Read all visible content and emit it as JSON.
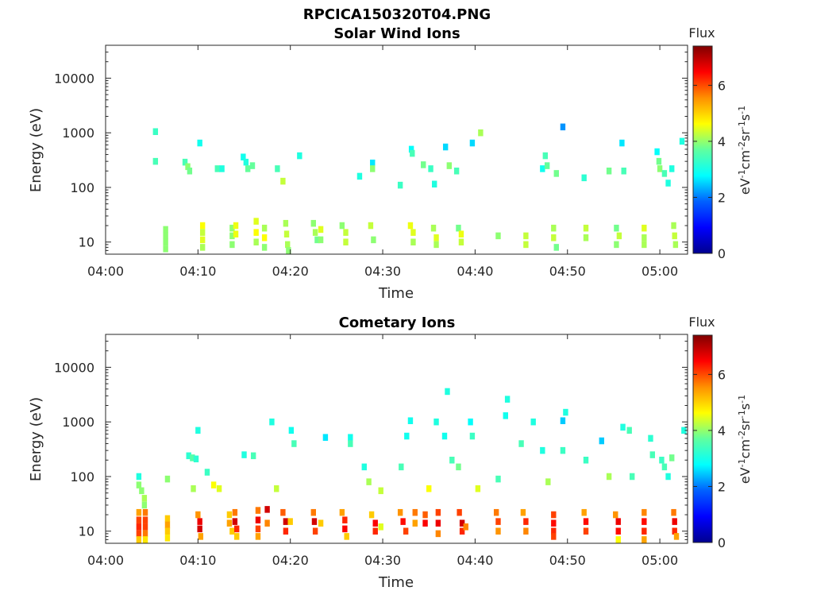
{
  "figure": {
    "title": "RPCICA150320T04.PNG"
  },
  "colors": {
    "axis": "#262626",
    "colormap": [
      "#00008f",
      "#0000ff",
      "#0080ff",
      "#00ffff",
      "#80ff80",
      "#ffff00",
      "#ff8000",
      "#ff0000",
      "#800000"
    ]
  },
  "chart_data": [
    {
      "type": "heatmap",
      "title": "Solar Wind Ions",
      "xlabel": "Time",
      "ylabel": "Energy (eV)",
      "y_scale": "log",
      "xlim": [
        "04:00",
        "05:03"
      ],
      "ylim": [
        6,
        40000
      ],
      "x_ticks": [
        "04:00",
        "04:10",
        "04:20",
        "04:30",
        "04:40",
        "04:50",
        "05:00"
      ],
      "y_ticks": [
        10,
        100,
        1000,
        10000
      ],
      "y_tick_labels": [
        "10",
        "100",
        "1000",
        "10000"
      ],
      "colorbar": {
        "label": "Flux",
        "units_base": "eV",
        "units": "eV-1cm-2sr-1s-1",
        "range": [
          0,
          7.4
        ],
        "ticks": [
          0,
          2,
          4,
          6
        ]
      },
      "cells": [
        [
          "04:05.4",
          1050,
          3.2
        ],
        [
          "04:05.4",
          300,
          3.3
        ],
        [
          "04:06.5",
          17,
          3.8
        ],
        [
          "04:06.5",
          13,
          3.8
        ],
        [
          "04:06.5",
          10,
          3.8
        ],
        [
          "04:06.5",
          7.5,
          3.8
        ],
        [
          "04:08.6",
          290,
          3.3
        ],
        [
          "04:08.9",
          240,
          3.8
        ],
        [
          "04:09.1",
          200,
          3.6
        ],
        [
          "04:10.2",
          650,
          2.9
        ],
        [
          "04:10.5",
          20,
          4.6
        ],
        [
          "04:10.5",
          15,
          4.2
        ],
        [
          "04:10.5",
          11,
          4.4
        ],
        [
          "04:10.5",
          8,
          4.0
        ],
        [
          "04:12.1",
          220,
          3.3
        ],
        [
          "04:12.6",
          220,
          3.0
        ],
        [
          "04:13.7",
          18,
          3.8
        ],
        [
          "04:13.7",
          13,
          3.8
        ],
        [
          "04:13.7",
          9,
          3.8
        ],
        [
          "04:14.1",
          20,
          4.5
        ],
        [
          "04:14.1",
          14,
          4.5
        ],
        [
          "04:14.9",
          360,
          2.9
        ],
        [
          "04:15.2",
          290,
          3.0
        ],
        [
          "04:15.4",
          220,
          3.5
        ],
        [
          "04:15.9",
          250,
          3.5
        ],
        [
          "04:16.3",
          24,
          4.4
        ],
        [
          "04:16.3",
          15,
          4.6
        ],
        [
          "04:16.3",
          10,
          4.0
        ],
        [
          "04:17.2",
          18,
          4.0
        ],
        [
          "04:17.2",
          12,
          4.6
        ],
        [
          "04:17.2",
          8,
          3.8
        ],
        [
          "04:18.6",
          220,
          3.3
        ],
        [
          "04:19.2",
          130,
          4.2
        ],
        [
          "04:19.5",
          22,
          4.0
        ],
        [
          "04:19.6",
          14,
          4.2
        ],
        [
          "04:19.7",
          9,
          4.0
        ],
        [
          "04:19.8",
          7,
          3.8
        ],
        [
          "04:21.0",
          380,
          3.0
        ],
        [
          "04:22.5",
          22,
          3.8
        ],
        [
          "04:22.7",
          15,
          4.0
        ],
        [
          "04:22.9",
          11,
          3.6
        ],
        [
          "04:23.3",
          17,
          4.4
        ],
        [
          "04:23.3",
          11,
          3.8
        ],
        [
          "04:25.6",
          20,
          3.8
        ],
        [
          "04:26.0",
          15,
          4.2
        ],
        [
          "04:26.0",
          10,
          4.2
        ],
        [
          "04:27.5",
          160,
          3.0
        ],
        [
          "04:28.9",
          280,
          2.6
        ],
        [
          "04:28.9",
          220,
          3.8
        ],
        [
          "04:28.7",
          20,
          4.2
        ],
        [
          "04:29.0",
          11,
          3.8
        ],
        [
          "04:31.9",
          110,
          3.2
        ],
        [
          "04:33.0",
          20,
          4.5
        ],
        [
          "04:33.3",
          15,
          4.4
        ],
        [
          "04:33.3",
          10,
          4.0
        ],
        [
          "04:33.1",
          500,
          2.8
        ],
        [
          "04:33.2",
          420,
          3.3
        ],
        [
          "04:34.4",
          260,
          3.6
        ],
        [
          "04:35.2",
          220,
          3.2
        ],
        [
          "04:35.6",
          115,
          3.0
        ],
        [
          "04:35.5",
          18,
          4.0
        ],
        [
          "04:35.8",
          12,
          4.4
        ],
        [
          "04:35.8",
          9,
          4.0
        ],
        [
          "04:36.8",
          550,
          2.5
        ],
        [
          "04:37.2",
          250,
          3.8
        ],
        [
          "04:38.0",
          200,
          3.3
        ],
        [
          "04:38.2",
          18,
          3.6
        ],
        [
          "04:38.5",
          14,
          4.5
        ],
        [
          "04:38.5",
          10,
          4.2
        ],
        [
          "04:39.7",
          650,
          2.5
        ],
        [
          "04:40.6",
          1000,
          4.0
        ],
        [
          "04:42.5",
          13,
          3.8
        ],
        [
          "04:45.5",
          13,
          4.2
        ],
        [
          "04:45.5",
          9,
          4.2
        ],
        [
          "04:47.3",
          220,
          2.9
        ],
        [
          "04:47.6",
          380,
          3.3
        ],
        [
          "04:47.8",
          250,
          3.5
        ],
        [
          "04:48.5",
          18,
          4.0
        ],
        [
          "04:48.5",
          12,
          4.2
        ],
        [
          "04:48.8",
          8,
          3.6
        ],
        [
          "04:48.8",
          180,
          3.6
        ],
        [
          "04:49.5",
          1280,
          2.0
        ],
        [
          "04:52.0",
          18,
          4.2
        ],
        [
          "04:52.0",
          12,
          4.0
        ],
        [
          "04:51.8",
          150,
          3.1
        ],
        [
          "04:54.5",
          200,
          3.6
        ],
        [
          "04:55.3",
          18,
          3.6
        ],
        [
          "04:55.6",
          13,
          4.2
        ],
        [
          "04:55.3",
          9,
          3.8
        ],
        [
          "04:55.9",
          650,
          2.6
        ],
        [
          "04:56.1",
          200,
          3.3
        ],
        [
          "04:58.3",
          18,
          4.4
        ],
        [
          "04:58.3",
          12,
          4.0
        ],
        [
          "04:58.3",
          9,
          4.0
        ],
        [
          "04:59.7",
          450,
          2.8
        ],
        [
          "04:59.9",
          300,
          3.6
        ],
        [
          "05:00.0",
          220,
          3.8
        ],
        [
          "05:00.5",
          180,
          3.3
        ],
        [
          "05:00.9",
          120,
          3.0
        ],
        [
          "05:01.3",
          220,
          3.0
        ],
        [
          "05:01.5",
          20,
          4.0
        ],
        [
          "05:01.6",
          13,
          4.2
        ],
        [
          "05:01.7",
          9,
          4.0
        ],
        [
          "05:02.4",
          700,
          3.0
        ]
      ]
    },
    {
      "type": "heatmap",
      "title": "Cometary Ions",
      "xlabel": "Time",
      "ylabel": "Energy (eV)",
      "y_scale": "log",
      "xlim": [
        "04:00",
        "05:03"
      ],
      "ylim": [
        6,
        40000
      ],
      "x_ticks": [
        "04:00",
        "04:10",
        "04:20",
        "04:30",
        "04:40",
        "04:50",
        "05:00"
      ],
      "y_ticks": [
        10,
        100,
        1000,
        10000
      ],
      "y_tick_labels": [
        "10",
        "100",
        "1000",
        "10000"
      ],
      "colorbar": {
        "label": "Flux",
        "units_base": "eV",
        "units": "eV-1cm-2sr-1s-1",
        "range": [
          0,
          7.4
        ],
        "ticks": [
          0,
          2,
          4,
          6
        ]
      },
      "cells": [
        [
          "04:03.6",
          100,
          3.0
        ],
        [
          "04:03.6",
          70,
          3.8
        ],
        [
          "04:03.9",
          55,
          3.8
        ],
        [
          "04:04.2",
          40,
          4.0
        ],
        [
          "04:04.2",
          30,
          3.8
        ],
        [
          "04:03.6",
          22,
          5.3
        ],
        [
          "04:03.6",
          16,
          6.0
        ],
        [
          "04:03.6",
          12,
          6.2
        ],
        [
          "04:03.6",
          9,
          6.0
        ],
        [
          "04:03.6",
          7,
          5.0
        ],
        [
          "04:04.3",
          22,
          5.6
        ],
        [
          "04:04.3",
          16,
          6.0
        ],
        [
          "04:04.3",
          12,
          6.0
        ],
        [
          "04:04.3",
          9,
          5.6
        ],
        [
          "04:04.3",
          7,
          4.8
        ],
        [
          "04:06.7",
          90,
          3.8
        ],
        [
          "04:06.7",
          17,
          5.0
        ],
        [
          "04:06.7",
          13,
          5.3
        ],
        [
          "04:06.7",
          10,
          5.0
        ],
        [
          "04:06.7",
          7.5,
          4.8
        ],
        [
          "04:09.0",
          240,
          3.1
        ],
        [
          "04:09.4",
          220,
          3.4
        ],
        [
          "04:09.8",
          210,
          3.1
        ],
        [
          "04:09.5",
          60,
          4.0
        ],
        [
          "04:10.0",
          700,
          3.0
        ],
        [
          "04:10.0",
          20,
          5.4
        ],
        [
          "04:10.2",
          15,
          6.6
        ],
        [
          "04:10.2",
          11,
          6.8
        ],
        [
          "04:10.3",
          8,
          5.3
        ],
        [
          "04:11.0",
          120,
          3.2
        ],
        [
          "04:11.7",
          70,
          4.6
        ],
        [
          "04:12.3",
          60,
          4.4
        ],
        [
          "04:13.4",
          20,
          5.0
        ],
        [
          "04:13.4",
          14,
          5.3
        ],
        [
          "04:13.7",
          10,
          5.0
        ],
        [
          "04:14.0",
          22,
          5.6
        ],
        [
          "04:14.0",
          15,
          6.8
        ],
        [
          "04:14.2",
          11,
          6.2
        ],
        [
          "04:14.2",
          8,
          5.0
        ],
        [
          "04:15.0",
          250,
          3.0
        ],
        [
          "04:16.0",
          240,
          3.3
        ],
        [
          "04:16.5",
          24,
          5.6
        ],
        [
          "04:16.5",
          16,
          6.6
        ],
        [
          "04:16.5",
          11,
          6.0
        ],
        [
          "04:16.5",
          8,
          5.3
        ],
        [
          "04:17.5",
          25,
          6.8
        ],
        [
          "04:17.5",
          14,
          5.5
        ],
        [
          "04:18.0",
          1000,
          3.0
        ],
        [
          "04:18.5",
          60,
          4.2
        ],
        [
          "04:19.2",
          22,
          5.8
        ],
        [
          "04:19.5",
          15,
          6.8
        ],
        [
          "04:19.5",
          10,
          6.2
        ],
        [
          "04:20.0",
          15,
          5.0
        ],
        [
          "04:20.1",
          700,
          2.9
        ],
        [
          "04:20.4",
          400,
          3.3
        ],
        [
          "04:22.5",
          22,
          5.6
        ],
        [
          "04:22.6",
          15,
          6.8
        ],
        [
          "04:22.7",
          10,
          6.0
        ],
        [
          "04:23.3",
          14,
          5.0
        ],
        [
          "04:23.8",
          520,
          2.6
        ],
        [
          "04:25.6",
          22,
          5.3
        ],
        [
          "04:25.9",
          16,
          6.2
        ],
        [
          "04:25.9",
          11,
          6.5
        ],
        [
          "04:26.1",
          8,
          5.0
        ],
        [
          "04:26.5",
          520,
          2.9
        ],
        [
          "04:26.5",
          400,
          3.3
        ],
        [
          "04:28.0",
          150,
          3.0
        ],
        [
          "04:28.5",
          80,
          4.0
        ],
        [
          "04:28.8",
          20,
          5.0
        ],
        [
          "04:29.2",
          14,
          6.5
        ],
        [
          "04:29.2",
          10,
          6.2
        ],
        [
          "04:29.8",
          55,
          4.2
        ],
        [
          "04:29.8",
          12,
          4.4
        ],
        [
          "04:31.9",
          22,
          5.4
        ],
        [
          "04:32.2",
          15,
          6.4
        ],
        [
          "04:32.5",
          10,
          6.0
        ],
        [
          "04:32.0",
          150,
          3.3
        ],
        [
          "04:32.6",
          550,
          2.9
        ],
        [
          "04:33.0",
          1050,
          2.9
        ],
        [
          "04:33.5",
          22,
          5.6
        ],
        [
          "04:33.5",
          14,
          5.3
        ],
        [
          "04:34.6",
          20,
          5.8
        ],
        [
          "04:34.6",
          14,
          6.5
        ],
        [
          "04:35.0",
          60,
          4.6
        ],
        [
          "04:35.8",
          1000,
          3.0
        ],
        [
          "04:36.0",
          22,
          6.0
        ],
        [
          "04:36.0",
          14,
          6.6
        ],
        [
          "04:36.0",
          9,
          5.5
        ],
        [
          "04:36.7",
          550,
          2.9
        ],
        [
          "04:37.0",
          3600,
          3.0
        ],
        [
          "04:37.5",
          200,
          3.3
        ],
        [
          "04:38.2",
          150,
          3.6
        ],
        [
          "04:38.3",
          22,
          6.0
        ],
        [
          "04:38.6",
          14,
          6.8
        ],
        [
          "04:38.6",
          10,
          6.2
        ],
        [
          "04:39.0",
          12,
          5.5
        ],
        [
          "04:39.5",
          1000,
          2.8
        ],
        [
          "04:39.7",
          550,
          3.2
        ],
        [
          "04:40.3",
          60,
          4.4
        ],
        [
          "04:42.3",
          22,
          5.6
        ],
        [
          "04:42.5",
          15,
          6.0
        ],
        [
          "04:42.5",
          10,
          5.4
        ],
        [
          "04:42.5",
          90,
          3.3
        ],
        [
          "04:43.3",
          1300,
          2.9
        ],
        [
          "04:43.5",
          2600,
          3.0
        ],
        [
          "04:45.2",
          22,
          5.3
        ],
        [
          "04:45.5",
          15,
          6.2
        ],
        [
          "04:45.5",
          10,
          5.5
        ],
        [
          "04:45.0",
          400,
          3.3
        ],
        [
          "04:46.3",
          1000,
          3.0
        ],
        [
          "04:47.3",
          300,
          3.0
        ],
        [
          "04:47.9",
          80,
          4.0
        ],
        [
          "04:48.5",
          20,
          6.0
        ],
        [
          "04:48.5",
          14,
          6.4
        ],
        [
          "04:48.5",
          10,
          6.2
        ],
        [
          "04:48.5",
          8,
          6.0
        ],
        [
          "04:49.5",
          1050,
          2.4
        ],
        [
          "04:49.8",
          1500,
          3.0
        ],
        [
          "04:49.5",
          300,
          3.2
        ],
        [
          "04:51.8",
          22,
          5.3
        ],
        [
          "04:52.0",
          15,
          6.4
        ],
        [
          "04:52.0",
          10,
          6.0
        ],
        [
          "04:52.0",
          200,
          3.2
        ],
        [
          "04:53.7",
          450,
          2.4
        ],
        [
          "04:54.5",
          100,
          4.0
        ],
        [
          "04:55.2",
          20,
          5.4
        ],
        [
          "04:55.5",
          15,
          6.6
        ],
        [
          "04:55.5",
          10,
          6.4
        ],
        [
          "04:55.5",
          7,
          4.6
        ],
        [
          "04:56.0",
          800,
          3.0
        ],
        [
          "04:56.7",
          700,
          3.3
        ],
        [
          "04:57.0",
          100,
          3.3
        ],
        [
          "04:58.3",
          22,
          5.5
        ],
        [
          "04:58.3",
          15,
          6.4
        ],
        [
          "04:58.3",
          10,
          6.2
        ],
        [
          "04:58.3",
          7,
          5.3
        ],
        [
          "04:59.0",
          500,
          3.1
        ],
        [
          "04:59.2",
          250,
          3.3
        ],
        [
          "05:00.2",
          200,
          3.2
        ],
        [
          "05:00.5",
          150,
          3.3
        ],
        [
          "05:00.9",
          100,
          3.0
        ],
        [
          "05:01.3",
          220,
          3.6
        ],
        [
          "05:01.5",
          22,
          5.6
        ],
        [
          "05:01.6",
          15,
          6.6
        ],
        [
          "05:01.6",
          10,
          6.2
        ],
        [
          "05:01.8",
          8,
          5.3
        ],
        [
          "05:02.6",
          700,
          3.0
        ]
      ]
    }
  ]
}
